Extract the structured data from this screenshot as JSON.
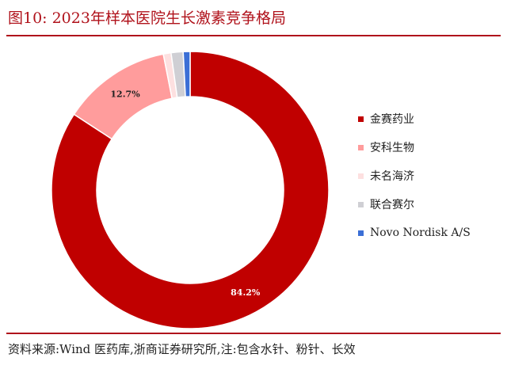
{
  "header": {
    "figure_label": "图10:",
    "title": "2023年样本医院生长激素竞争格局"
  },
  "footer": {
    "source": "资料来源:Wind 医药库,浙商证券研究所,注:包含水针、粉针、长效"
  },
  "chart_data": {
    "type": "pie",
    "donut": true,
    "title": "2023年样本医院生长激素竞争格局",
    "legend_position": "right",
    "categories": [
      "金赛药业",
      "安科生物",
      "未名海济",
      "联合赛尔",
      "Novo Nordisk A/S"
    ],
    "values": [
      84.2,
      12.7,
      0.9,
      1.4,
      0.8
    ],
    "colors": [
      "#c00000",
      "#ff9c9c",
      "#fde0e0",
      "#cfcfd4",
      "#3b6fd6"
    ],
    "data_labels": [
      "84.2%",
      "12.7%",
      "",
      "",
      ""
    ]
  }
}
